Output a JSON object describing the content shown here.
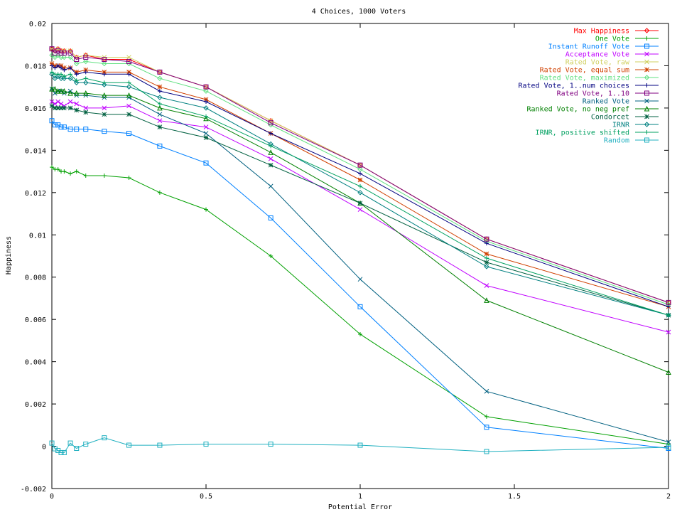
{
  "chart_data": {
    "type": "line",
    "title": "4 Choices, 1000 Voters",
    "xlabel": "Potential Error",
    "ylabel": "Happiness",
    "xlim": [
      0,
      2
    ],
    "ylim": [
      -0.002,
      0.02
    ],
    "x_ticks": [
      "0",
      "0.5",
      "1",
      "1.5",
      "2"
    ],
    "y_ticks": [
      "-0.002",
      "0",
      "0.002",
      "0.004",
      "0.006",
      "0.008",
      "0.01",
      "0.012",
      "0.014",
      "0.016",
      "0.018",
      "0.02"
    ],
    "grid": false,
    "legend_position": "top-right",
    "x": [
      0,
      0.01,
      0.02,
      0.03,
      0.04,
      0.06,
      0.08,
      0.11,
      0.17,
      0.25,
      0.35,
      0.5,
      0.71,
      1.0,
      1.41,
      2.0
    ],
    "series": [
      {
        "name": "Max Happiness",
        "color": "#ff0000",
        "marker": "diamond",
        "values": [
          0.0188,
          0.0187,
          0.0188,
          0.0187,
          0.0187,
          0.0187,
          0.0184,
          0.0185,
          0.0183,
          0.0183,
          0.0177,
          0.017,
          0.0154,
          0.0133,
          0.0098,
          0.0068
        ]
      },
      {
        "name": "One Vote",
        "color": "#00a000",
        "marker": "plus",
        "values": [
          0.0132,
          0.0131,
          0.0131,
          0.013,
          0.013,
          0.0129,
          0.013,
          0.0128,
          0.0128,
          0.0127,
          0.012,
          0.0112,
          0.009,
          0.0053,
          0.0014,
          0.0001
        ]
      },
      {
        "name": "Instant Runoff Vote",
        "color": "#0080ff",
        "marker": "square",
        "values": [
          0.0154,
          0.0152,
          0.0152,
          0.0151,
          0.0151,
          0.015,
          0.015,
          0.015,
          0.0149,
          0.0148,
          0.0142,
          0.0134,
          0.0108,
          0.0066,
          0.0009,
          -0.0001
        ]
      },
      {
        "name": "Acceptance Vote",
        "color": "#c000ff",
        "marker": "cross",
        "values": [
          0.0163,
          0.0162,
          0.0163,
          0.0162,
          0.0161,
          0.0163,
          0.0162,
          0.016,
          0.016,
          0.0161,
          0.0154,
          0.0151,
          0.0136,
          0.0112,
          0.0076,
          0.0054
        ]
      },
      {
        "name": "Rated Vote, raw",
        "color": "#d0d060",
        "marker": "cross",
        "values": [
          0.0188,
          0.0187,
          0.0188,
          0.0187,
          0.0187,
          0.0187,
          0.0184,
          0.0185,
          0.0184,
          0.0184,
          0.0177,
          0.017,
          0.0154,
          0.0133,
          0.0098,
          0.0068
        ]
      },
      {
        "name": "Rated Vote, equal sum",
        "color": "#d04000",
        "marker": "star",
        "values": [
          0.0181,
          0.018,
          0.018,
          0.018,
          0.0179,
          0.0179,
          0.0177,
          0.0178,
          0.0177,
          0.0177,
          0.017,
          0.0164,
          0.0148,
          0.0126,
          0.0091,
          0.0066
        ]
      },
      {
        "name": "Rated Vote, maximized",
        "color": "#60e080",
        "marker": "diamond",
        "values": [
          0.0185,
          0.0184,
          0.0185,
          0.0184,
          0.0184,
          0.0184,
          0.0181,
          0.0182,
          0.0181,
          0.0181,
          0.0174,
          0.0168,
          0.0152,
          0.0131,
          0.0097,
          0.0067
        ]
      },
      {
        "name": "Rated Vote, 1..num choices",
        "color": "#000080",
        "marker": "plus",
        "values": [
          0.018,
          0.0179,
          0.018,
          0.0179,
          0.0178,
          0.0179,
          0.0176,
          0.0177,
          0.0176,
          0.0176,
          0.0168,
          0.0163,
          0.0148,
          0.0129,
          0.0096,
          0.0066
        ]
      },
      {
        "name": "Rated Vote, 1..10",
        "color": "#800080",
        "marker": "square",
        "values": [
          0.0188,
          0.0186,
          0.0187,
          0.0186,
          0.0186,
          0.0186,
          0.0183,
          0.0184,
          0.0183,
          0.0182,
          0.0177,
          0.017,
          0.0153,
          0.0133,
          0.0098,
          0.0068
        ]
      },
      {
        "name": "Ranked Vote",
        "color": "#006080",
        "marker": "cross",
        "values": [
          0.0169,
          0.0167,
          0.0168,
          0.0168,
          0.0167,
          0.0168,
          0.0166,
          0.0166,
          0.0165,
          0.0165,
          0.0157,
          0.0148,
          0.0123,
          0.0079,
          0.0026,
          0.0002
        ]
      },
      {
        "name": "Ranked Vote, no neg pref",
        "color": "#008000",
        "marker": "triangle",
        "values": [
          0.0169,
          0.0169,
          0.0168,
          0.0168,
          0.0168,
          0.0167,
          0.0167,
          0.0167,
          0.0166,
          0.0166,
          0.016,
          0.0155,
          0.0139,
          0.0115,
          0.0069,
          0.0035
        ]
      },
      {
        "name": "Condorcet",
        "color": "#006040",
        "marker": "star",
        "values": [
          0.0161,
          0.016,
          0.016,
          0.016,
          0.016,
          0.016,
          0.0159,
          0.0158,
          0.0157,
          0.0157,
          0.0151,
          0.0146,
          0.0133,
          0.0115,
          0.0087,
          0.0062
        ]
      },
      {
        "name": "IRNR",
        "color": "#008080",
        "marker": "diamond",
        "values": [
          0.0176,
          0.0174,
          0.0175,
          0.0174,
          0.0174,
          0.0174,
          0.0172,
          0.0172,
          0.0171,
          0.017,
          0.0165,
          0.016,
          0.0143,
          0.012,
          0.0085,
          0.0062
        ]
      },
      {
        "name": "IRNR, positive shifted",
        "color": "#00a060",
        "marker": "plus",
        "values": [
          0.0177,
          0.0176,
          0.0176,
          0.0176,
          0.0175,
          0.0176,
          0.0173,
          0.0174,
          0.0172,
          0.0172,
          0.0162,
          0.0156,
          0.0142,
          0.0123,
          0.0089,
          0.0062
        ]
      },
      {
        "name": "Random",
        "color": "#20b0c0",
        "marker": "square",
        "values": [
          0.00015,
          -0.00012,
          -0.0002,
          -0.0003,
          -0.0003,
          0.00015,
          -0.0001,
          0.0001,
          0.0004,
          5e-05,
          5e-05,
          0.0001,
          0.0001,
          5e-05,
          -0.00025,
          -5e-05
        ]
      }
    ]
  }
}
